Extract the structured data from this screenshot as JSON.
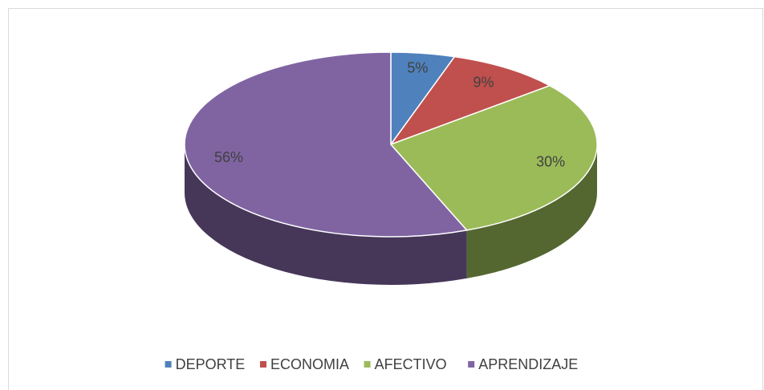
{
  "chart_data": {
    "type": "pie",
    "categories": [
      "DEPORTE",
      "ECONOMIA",
      "AFECTIVO",
      "APRENDIZAJE"
    ],
    "values": [
      5,
      9,
      30,
      56
    ],
    "value_labels": [
      "5%",
      "9%",
      "30%",
      "56%"
    ],
    "colors": [
      "#4f81bd",
      "#c0504d",
      "#9bbb59",
      "#8064a2"
    ],
    "legend": "bottom"
  }
}
